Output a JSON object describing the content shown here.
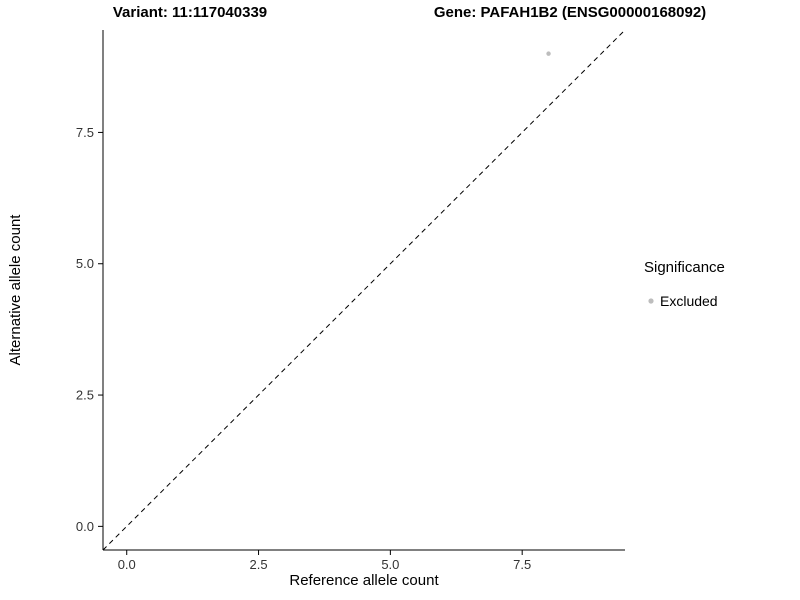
{
  "chart_data": {
    "type": "scatter",
    "title_left": "Variant: 11:117040339",
    "title_right": "Gene: PAFAH1B2 (ENSG00000168092)",
    "xlabel": "Reference allele count",
    "ylabel": "Alternative allele count",
    "xlim": [
      -0.45,
      9.45
    ],
    "ylim": [
      -0.45,
      9.45
    ],
    "x_ticks": {
      "values": [
        0,
        2.5,
        5,
        7.5
      ],
      "labels": [
        "0.0",
        "2.5",
        "5.0",
        "7.5"
      ]
    },
    "y_ticks": {
      "values": [
        0,
        2.5,
        5,
        7.5
      ],
      "labels": [
        "0.0",
        "2.5",
        "5.0",
        "7.5"
      ]
    },
    "grid": false,
    "reference_line": {
      "type": "diagonal-identity",
      "style": "dashed",
      "color": "#000000"
    },
    "points": [
      {
        "x": 8,
        "y": 9,
        "series": "Excluded"
      }
    ],
    "legend": {
      "title": "Significance",
      "position": "right",
      "entries": [
        {
          "label": "Excluded",
          "color": "#bdbdbd"
        }
      ]
    },
    "colors": {
      "axis_line": "#000000",
      "tick_label": "#333333",
      "background": "#ffffff"
    }
  }
}
